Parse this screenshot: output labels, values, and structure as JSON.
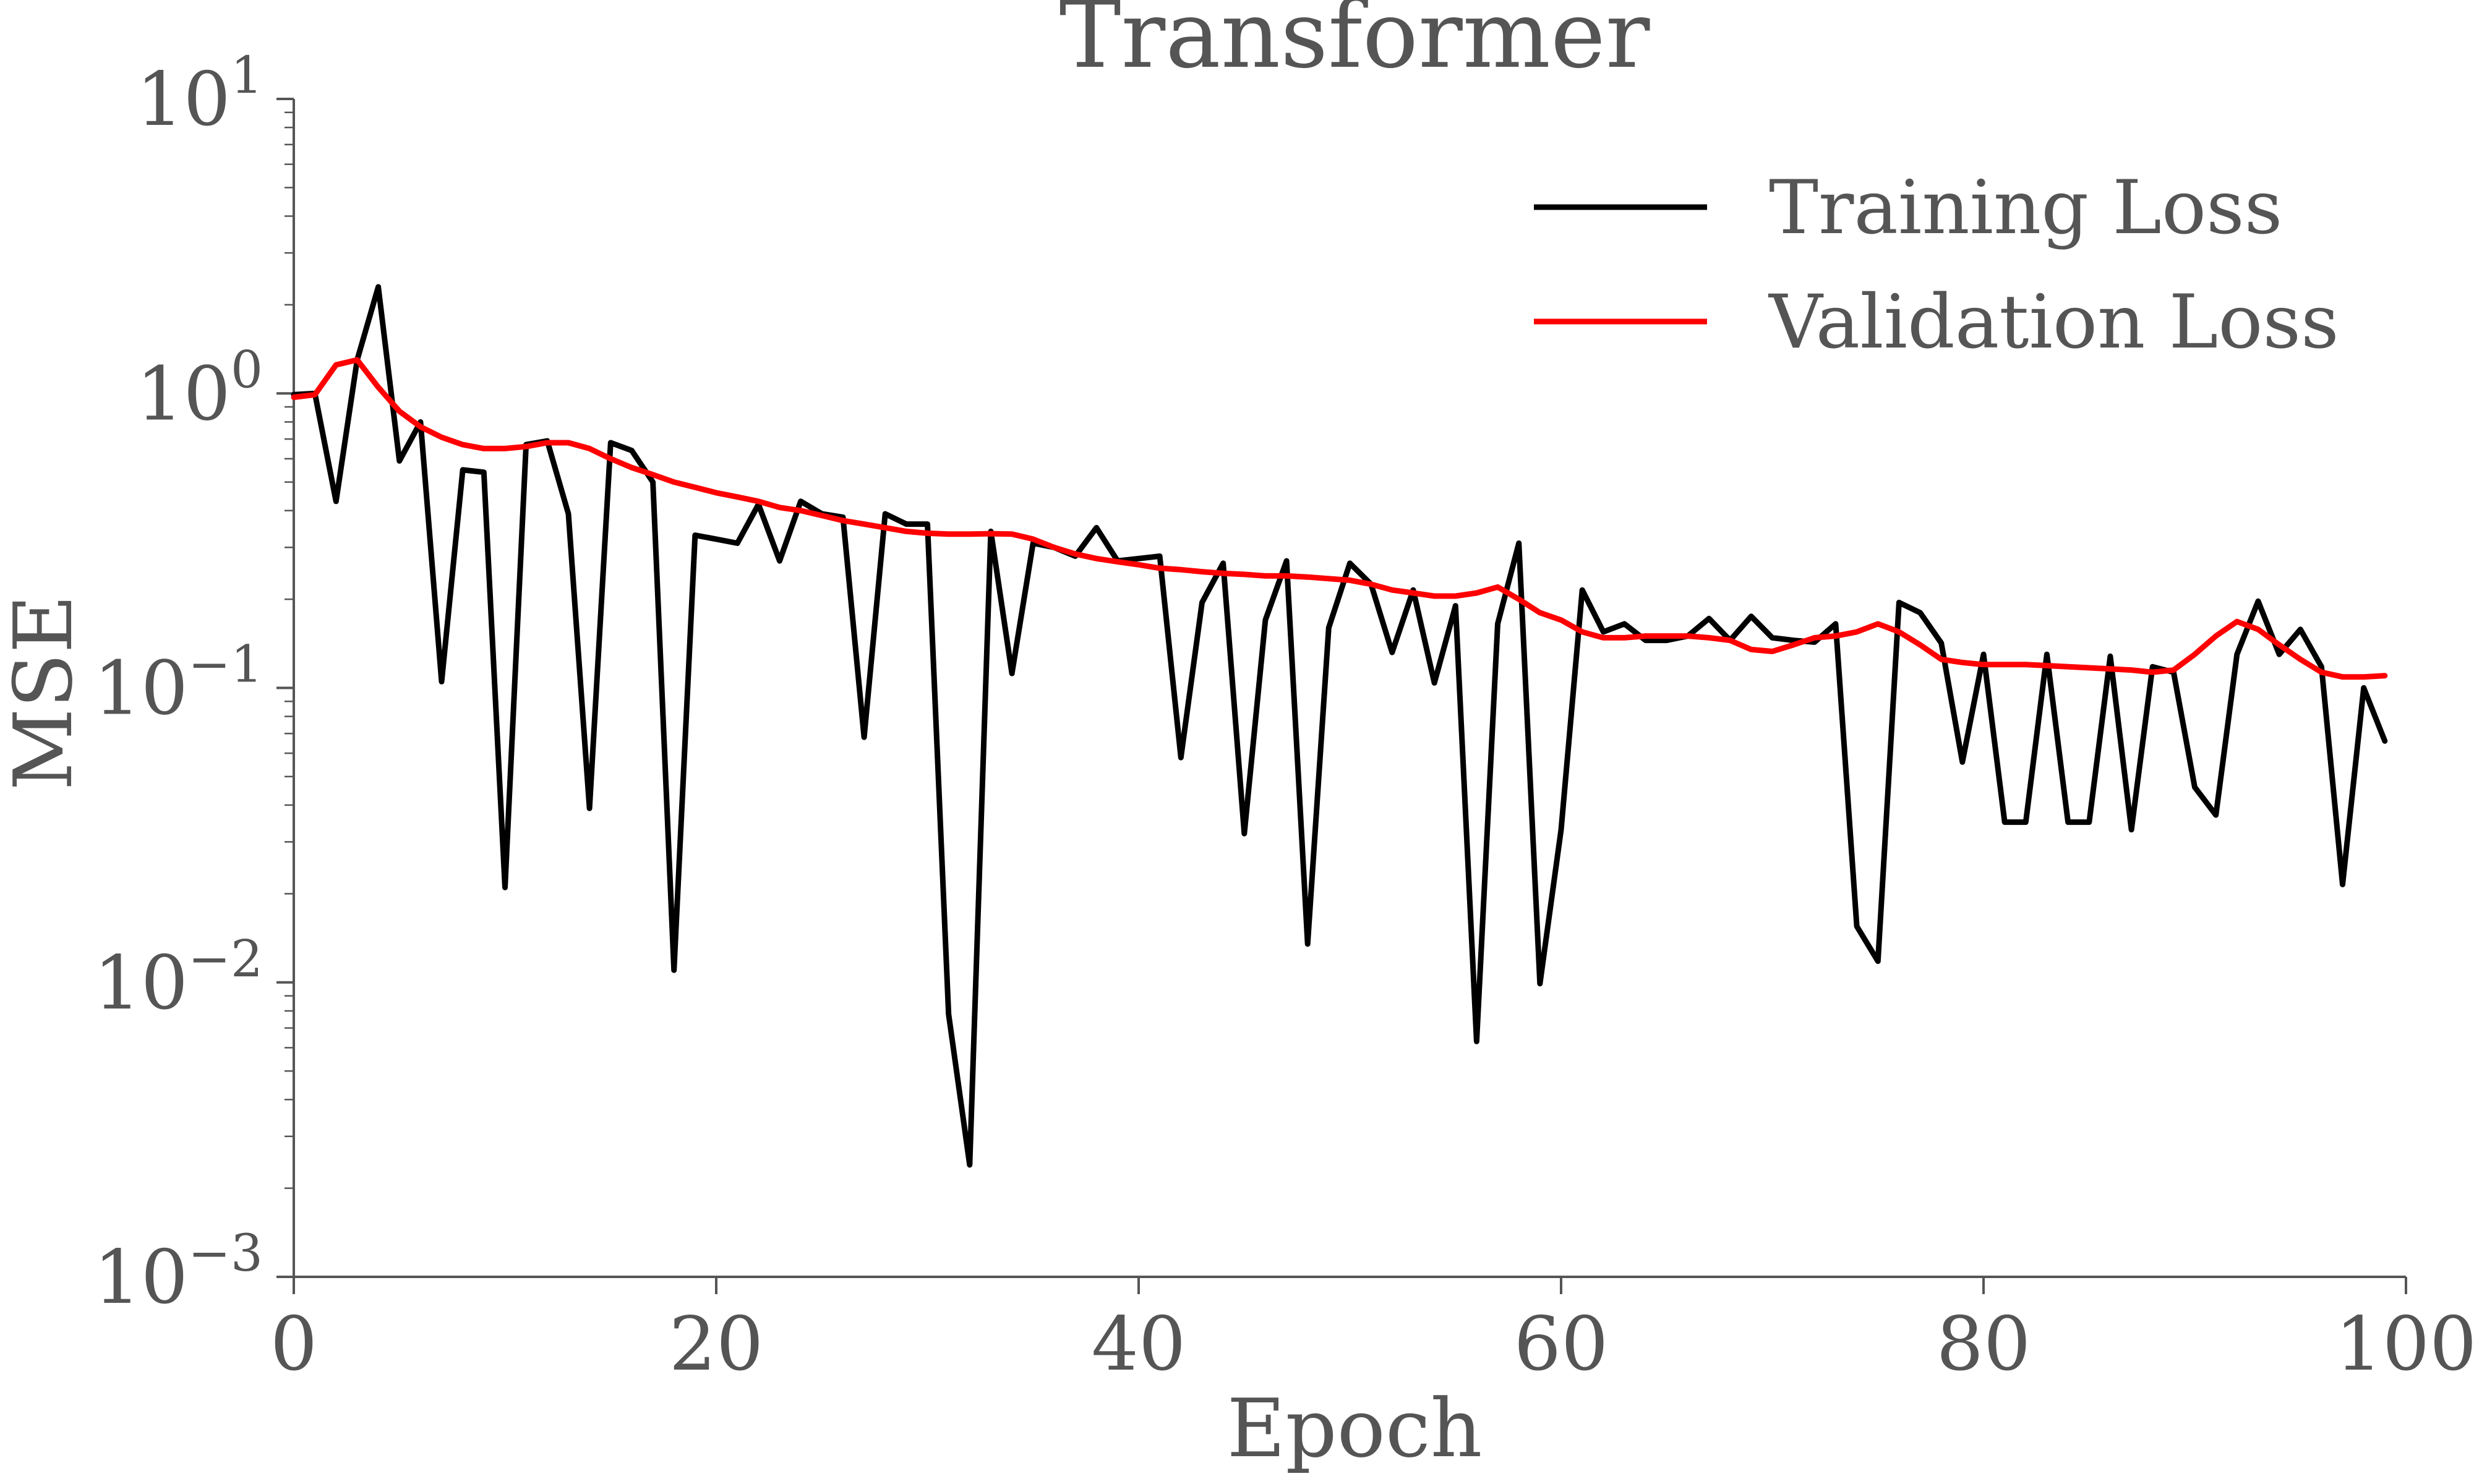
{
  "chart_data": {
    "type": "line",
    "title": "Transformer",
    "xlabel": "Epoch",
    "ylabel": "MSE",
    "xlim": [
      0,
      100
    ],
    "ylim": [
      0.001,
      10
    ],
    "yscale": "log",
    "grid": false,
    "legend": "top-right",
    "x_ticks": [
      0,
      20,
      40,
      60,
      80,
      100
    ],
    "x_tick_labels": [
      "0",
      "20",
      "40",
      "60",
      "80",
      "100"
    ],
    "y_ticks": [
      0.001,
      0.01,
      0.1,
      1,
      10
    ],
    "y_tick_labels": [
      {
        "base": "10",
        "exp": "−3"
      },
      {
        "base": "10",
        "exp": "−2"
      },
      {
        "base": "10",
        "exp": "−1"
      },
      {
        "base": "10",
        "exp": "0"
      },
      {
        "base": "10",
        "exp": "1"
      }
    ],
    "x": [
      0,
      1,
      2,
      3,
      4,
      5,
      6,
      7,
      8,
      9,
      10,
      11,
      12,
      13,
      14,
      15,
      16,
      17,
      18,
      19,
      20,
      21,
      22,
      23,
      24,
      25,
      26,
      27,
      28,
      29,
      30,
      31,
      32,
      33,
      34,
      35,
      36,
      37,
      38,
      39,
      40,
      41,
      42,
      43,
      44,
      45,
      46,
      47,
      48,
      49,
      50,
      51,
      52,
      53,
      54,
      55,
      56,
      57,
      58,
      59,
      60,
      61,
      62,
      63,
      64,
      65,
      66,
      67,
      68,
      69,
      70,
      71,
      72,
      73,
      74,
      75,
      76,
      77,
      78,
      79,
      80,
      81,
      82,
      83,
      84,
      85,
      86,
      87,
      88,
      89,
      90,
      91,
      92,
      93,
      94,
      95,
      96,
      97,
      98,
      99
    ],
    "series": [
      {
        "name": "Training Loss",
        "color": "#000000",
        "values": [
          0.99,
          1.0,
          0.43,
          1.3,
          2.3,
          0.59,
          0.8,
          0.105,
          0.55,
          0.54,
          0.021,
          0.67,
          0.69,
          0.39,
          0.039,
          0.68,
          0.64,
          0.5,
          0.011,
          0.33,
          0.32,
          0.31,
          0.42,
          0.27,
          0.43,
          0.39,
          0.38,
          0.068,
          0.39,
          0.36,
          0.36,
          0.0078,
          0.0024,
          0.34,
          0.112,
          0.31,
          0.3,
          0.28,
          0.35,
          0.27,
          0.275,
          0.28,
          0.058,
          0.195,
          0.265,
          0.032,
          0.17,
          0.27,
          0.0135,
          0.16,
          0.265,
          0.225,
          0.132,
          0.215,
          0.104,
          0.19,
          0.0063,
          0.165,
          0.31,
          0.0099,
          0.033,
          0.215,
          0.155,
          0.165,
          0.145,
          0.145,
          0.15,
          0.172,
          0.145,
          0.175,
          0.148,
          0.145,
          0.143,
          0.165,
          0.0155,
          0.0118,
          0.195,
          0.18,
          0.142,
          0.056,
          0.13,
          0.035,
          0.035,
          0.13,
          0.035,
          0.035,
          0.128,
          0.033,
          0.118,
          0.113,
          0.046,
          0.037,
          0.13,
          0.197,
          0.13,
          0.158,
          0.118,
          0.0215,
          0.1,
          0.066
        ]
      },
      {
        "name": "Validation Loss",
        "color": "#ff0000",
        "values": [
          0.97,
          0.99,
          1.25,
          1.3,
          1.05,
          0.87,
          0.77,
          0.71,
          0.67,
          0.65,
          0.65,
          0.66,
          0.68,
          0.68,
          0.65,
          0.6,
          0.56,
          0.53,
          0.5,
          0.48,
          0.46,
          0.445,
          0.43,
          0.41,
          0.4,
          0.385,
          0.37,
          0.36,
          0.35,
          0.34,
          0.335,
          0.333,
          0.333,
          0.334,
          0.333,
          0.32,
          0.3,
          0.285,
          0.275,
          0.268,
          0.262,
          0.255,
          0.252,
          0.248,
          0.245,
          0.243,
          0.24,
          0.24,
          0.238,
          0.235,
          0.232,
          0.225,
          0.215,
          0.21,
          0.205,
          0.205,
          0.21,
          0.22,
          0.2,
          0.18,
          0.17,
          0.155,
          0.148,
          0.148,
          0.15,
          0.15,
          0.15,
          0.148,
          0.145,
          0.135,
          0.133,
          0.14,
          0.148,
          0.15,
          0.155,
          0.165,
          0.155,
          0.14,
          0.125,
          0.122,
          0.12,
          0.12,
          0.12,
          0.119,
          0.118,
          0.117,
          0.116,
          0.115,
          0.113,
          0.115,
          0.13,
          0.15,
          0.168,
          0.158,
          0.14,
          0.125,
          0.113,
          0.109,
          0.109,
          0.11
        ]
      }
    ]
  }
}
